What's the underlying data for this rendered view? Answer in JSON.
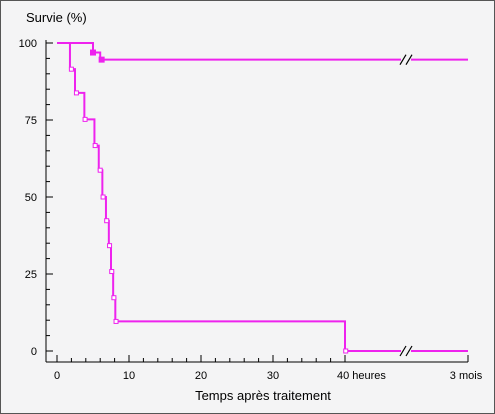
{
  "chart_data": {
    "type": "line",
    "title": "",
    "ylabel": "Survie (%)",
    "xlabel": "Temps après traitement",
    "ylim": [
      0,
      100
    ],
    "xlim": [
      0,
      40
    ],
    "y_ticks": [
      "0",
      "25",
      "50",
      "75",
      "100"
    ],
    "x_ticks": [
      "0",
      "10",
      "20",
      "30",
      "40 heures"
    ],
    "x_break_label": "3 mois",
    "grid": false,
    "series": [
      {
        "name": "",
        "marker": "filled-square",
        "steps": [
          [
            0,
            100
          ],
          [
            5,
            96.9
          ],
          [
            6,
            94.6
          ]
        ],
        "end_value": 94.6,
        "markers": [
          [
            5,
            96.9
          ],
          [
            6.2,
            94.6
          ]
        ]
      },
      {
        "name": "",
        "marker": "open-square",
        "steps": [
          [
            0,
            100
          ],
          [
            1.8,
            91.5
          ],
          [
            2.5,
            83.8
          ],
          [
            3.8,
            75.2
          ],
          [
            5.2,
            66.7
          ],
          [
            5.8,
            58.7
          ],
          [
            6.3,
            50.0
          ],
          [
            6.8,
            42.3
          ],
          [
            7.2,
            34.2
          ],
          [
            7.5,
            25.8
          ],
          [
            7.8,
            17.3
          ],
          [
            8.1,
            9.6
          ],
          [
            40,
            0
          ]
        ],
        "end_value": 0,
        "markers": [
          [
            2,
            91.5
          ],
          [
            2.7,
            83.8
          ],
          [
            3.9,
            75.2
          ],
          [
            5.3,
            66.7
          ],
          [
            6,
            58.7
          ],
          [
            6.4,
            50.0
          ],
          [
            6.9,
            42.3
          ],
          [
            7.3,
            34.2
          ],
          [
            7.6,
            25.8
          ],
          [
            7.9,
            17.3
          ],
          [
            8.2,
            9.6
          ],
          [
            40.1,
            0
          ]
        ]
      }
    ],
    "colors": {
      "line": "#ee22ee",
      "axis": "#000000",
      "background": "#f4f4f5"
    }
  }
}
